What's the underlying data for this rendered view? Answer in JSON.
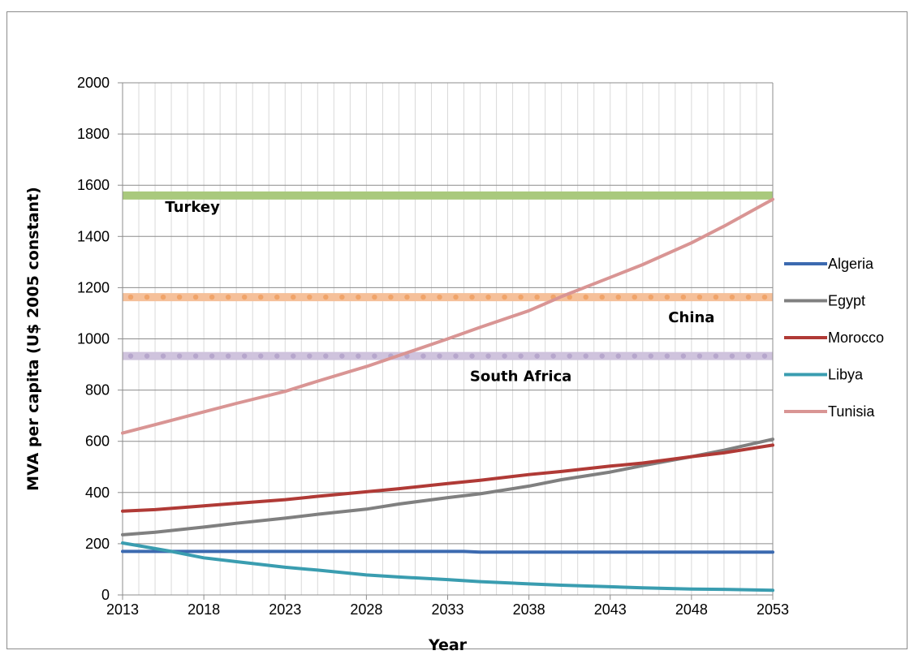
{
  "chart_data": {
    "type": "line",
    "xlabel": "Year",
    "ylabel": "MVA per capita (U$ 2005 constant)",
    "xlim": [
      2013,
      2053
    ],
    "ylim": [
      0,
      2000
    ],
    "x_ticks": [
      "2013",
      "2018",
      "2023",
      "2028",
      "2033",
      "2038",
      "2043",
      "2048",
      "2053"
    ],
    "y_ticks": [
      "0",
      "200",
      "400",
      "600",
      "800",
      "1000",
      "1200",
      "1400",
      "1600",
      "1800",
      "2000"
    ],
    "grid": true,
    "legend_position": "right",
    "series": [
      {
        "name": "Algeria",
        "color": "#3c6ab0",
        "x": [
          2013,
          2018,
          2023,
          2028,
          2033,
          2034,
          2035,
          2038,
          2043,
          2048,
          2053
        ],
        "y": [
          170,
          170,
          170,
          170,
          170,
          170,
          167,
          167,
          167,
          167,
          167
        ]
      },
      {
        "name": "Egypt",
        "color": "#808080",
        "x": [
          2013,
          2015,
          2018,
          2020,
          2023,
          2025,
          2028,
          2030,
          2033,
          2035,
          2038,
          2040,
          2043,
          2045,
          2048,
          2050,
          2053
        ],
        "y": [
          235,
          245,
          265,
          280,
          300,
          315,
          335,
          355,
          380,
          395,
          425,
          450,
          480,
          505,
          540,
          565,
          608
        ]
      },
      {
        "name": "Morocco",
        "color": "#b03a36",
        "x": [
          2013,
          2015,
          2018,
          2020,
          2023,
          2025,
          2028,
          2030,
          2033,
          2035,
          2038,
          2040,
          2043,
          2045,
          2048,
          2050,
          2053
        ],
        "y": [
          327,
          333,
          348,
          358,
          372,
          385,
          403,
          415,
          435,
          448,
          470,
          482,
          503,
          515,
          540,
          555,
          585
        ]
      },
      {
        "name": "Libya",
        "color": "#3a9db0",
        "x": [
          2013,
          2014,
          2016,
          2018,
          2020,
          2023,
          2025,
          2028,
          2030,
          2033,
          2035,
          2038,
          2040,
          2043,
          2045,
          2048,
          2050,
          2053
        ],
        "y": [
          203,
          192,
          170,
          145,
          130,
          108,
          97,
          78,
          70,
          60,
          52,
          43,
          38,
          32,
          28,
          23,
          22,
          18
        ]
      },
      {
        "name": "Tunisia",
        "color": "#d99594",
        "x": [
          2013,
          2015,
          2018,
          2020,
          2023,
          2025,
          2028,
          2030,
          2033,
          2035,
          2038,
          2040,
          2043,
          2045,
          2048,
          2050,
          2053
        ],
        "y": [
          632,
          665,
          715,
          748,
          795,
          835,
          892,
          935,
          1000,
          1045,
          1110,
          1165,
          1240,
          1290,
          1375,
          1440,
          1545
        ]
      }
    ],
    "reference_lines": [
      {
        "label": "Turkey",
        "value": 1560,
        "color": "#a9c97d",
        "dotted": false
      },
      {
        "label": "China",
        "value": 1163,
        "color": "#f5c09a",
        "dotted": true,
        "dot_color": "#f0a46a"
      },
      {
        "label": "South Africa",
        "value": 933,
        "color": "#cfc3dd",
        "dotted": true,
        "dot_color": "#b6a6cc"
      }
    ]
  }
}
